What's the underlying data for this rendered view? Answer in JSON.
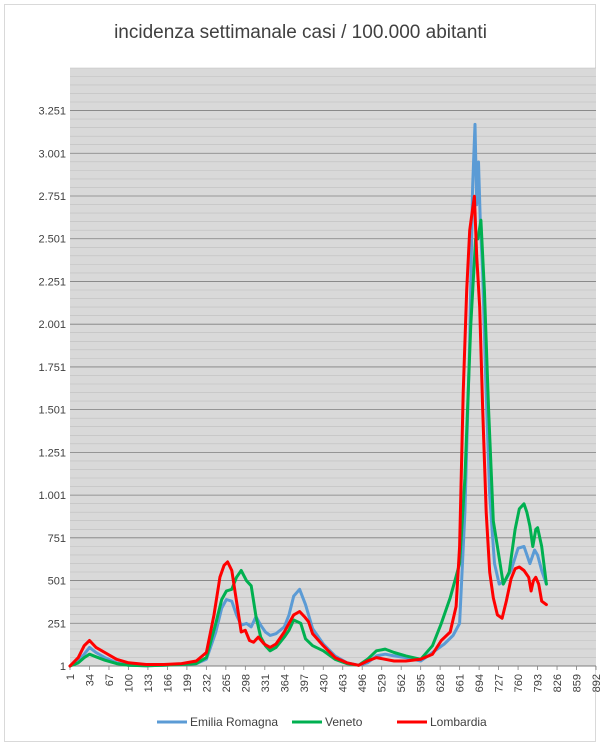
{
  "chart_data": {
    "type": "line",
    "title": "incidenza settimanale casi / 100.000 abitanti",
    "xlabel": "",
    "ylabel": "",
    "xlim": [
      1,
      892
    ],
    "ylim": [
      1,
      3500
    ],
    "yticks": [
      1,
      251,
      501,
      751,
      1001,
      1251,
      1501,
      1751,
      2001,
      2251,
      2501,
      2751,
      3001,
      3251
    ],
    "ytick_labels": [
      "1",
      "251",
      "501",
      "751",
      "1.001",
      "1.251",
      "1.501",
      "1.751",
      "2.001",
      "2.251",
      "2.501",
      "2.751",
      "3.001",
      "3.251"
    ],
    "xticks": [
      1,
      34,
      67,
      100,
      133,
      166,
      199,
      232,
      265,
      298,
      331,
      364,
      397,
      430,
      463,
      496,
      529,
      562,
      595,
      628,
      661,
      694,
      727,
      760,
      793,
      826,
      859,
      892
    ],
    "grid": true,
    "legend_position": "bottom",
    "series": [
      {
        "name": "Emilia Romagna",
        "color": "#5b9bd5",
        "x": [
          1,
          15,
          25,
          34,
          45,
          60,
          80,
          100,
          130,
          160,
          190,
          215,
          232,
          248,
          258,
          266,
          275,
          283,
          291,
          300,
          308,
          316,
          324,
          332,
          340,
          350,
          364,
          372,
          380,
          390,
          400,
          412,
          430,
          450,
          470,
          490,
          505,
          520,
          535,
          550,
          570,
          595,
          615,
          635,
          650,
          661,
          670,
          678,
          683,
          687,
          690,
          693,
          696,
          700,
          705,
          712,
          720,
          728,
          738,
          748,
          760,
          770,
          780,
          788,
          793,
          800,
          808
        ],
        "y": [
          1,
          30,
          70,
          110,
          80,
          50,
          20,
          5,
          3,
          5,
          10,
          15,
          40,
          200,
          340,
          390,
          380,
          300,
          240,
          250,
          230,
          290,
          240,
          200,
          180,
          190,
          230,
          300,
          410,
          450,
          360,
          220,
          130,
          60,
          20,
          5,
          20,
          60,
          70,
          60,
          50,
          30,
          80,
          130,
          180,
          250,
          900,
          1900,
          2800,
          3170,
          2700,
          2950,
          2600,
          2300,
          1700,
          1000,
          600,
          480,
          500,
          560,
          690,
          700,
          600,
          680,
          650,
          560,
          480
        ]
      },
      {
        "name": "Veneto",
        "color": "#00b050",
        "x": [
          1,
          15,
          25,
          34,
          45,
          60,
          80,
          100,
          130,
          160,
          190,
          215,
          232,
          248,
          258,
          266,
          275,
          283,
          291,
          300,
          308,
          316,
          324,
          332,
          340,
          350,
          364,
          372,
          380,
          392,
          400,
          412,
          430,
          450,
          470,
          490,
          505,
          520,
          535,
          550,
          570,
          595,
          615,
          630,
          645,
          661,
          670,
          680,
          688,
          692,
          697,
          703,
          710,
          718,
          725,
          735,
          745,
          755,
          762,
          770,
          775,
          780,
          785,
          790,
          793,
          800,
          808
        ],
        "y": [
          1,
          20,
          50,
          70,
          55,
          35,
          15,
          5,
          3,
          5,
          10,
          15,
          50,
          250,
          390,
          440,
          450,
          520,
          560,
          500,
          470,
          290,
          170,
          120,
          90,
          110,
          170,
          210,
          270,
          250,
          160,
          120,
          90,
          40,
          15,
          5,
          40,
          90,
          100,
          80,
          60,
          40,
          120,
          250,
          400,
          600,
          1100,
          2000,
          2500,
          2500,
          2610,
          2200,
          1500,
          850,
          700,
          480,
          550,
          800,
          920,
          950,
          900,
          820,
          700,
          800,
          810,
          700,
          480
        ]
      },
      {
        "name": "Lombardia",
        "color": "#ff0000",
        "x": [
          1,
          15,
          25,
          34,
          45,
          60,
          80,
          100,
          130,
          160,
          190,
          215,
          232,
          245,
          255,
          262,
          268,
          275,
          283,
          291,
          298,
          305,
          312,
          320,
          330,
          340,
          350,
          364,
          372,
          380,
          390,
          398,
          405,
          412,
          430,
          450,
          470,
          490,
          505,
          520,
          535,
          550,
          570,
          595,
          615,
          630,
          645,
          655,
          661,
          667,
          673,
          678,
          682,
          686,
          690,
          695,
          700,
          706,
          712,
          718,
          725,
          733,
          740,
          748,
          755,
          762,
          770,
          778,
          782,
          786,
          790,
          795,
          800,
          808
        ],
        "y": [
          1,
          50,
          120,
          150,
          110,
          80,
          40,
          20,
          10,
          10,
          15,
          30,
          80,
          300,
          520,
          590,
          610,
          560,
          380,
          200,
          210,
          150,
          140,
          170,
          130,
          110,
          130,
          200,
          250,
          300,
          320,
          290,
          260,
          190,
          120,
          50,
          20,
          5,
          30,
          50,
          40,
          30,
          30,
          40,
          70,
          150,
          200,
          350,
          700,
          1600,
          2200,
          2550,
          2650,
          2750,
          2400,
          2100,
          1500,
          900,
          550,
          400,
          300,
          280,
          380,
          510,
          570,
          580,
          560,
          520,
          440,
          500,
          520,
          480,
          380,
          360
        ]
      }
    ]
  }
}
